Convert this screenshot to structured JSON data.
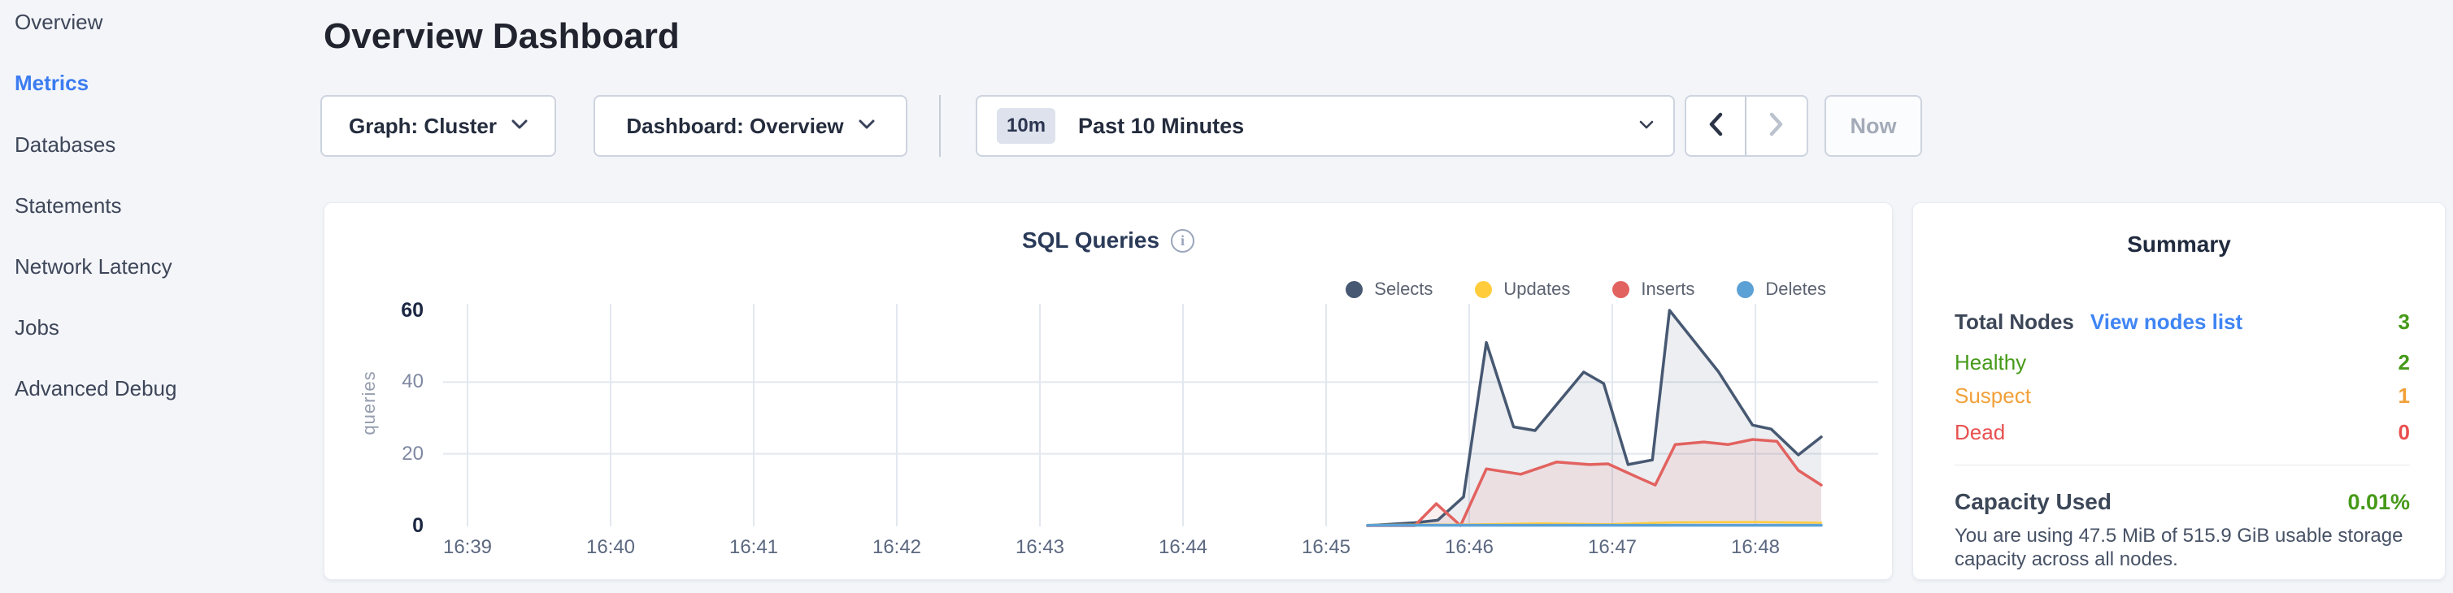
{
  "page": {
    "title": "Overview Dashboard"
  },
  "sidebar": {
    "items": [
      {
        "label": "Overview",
        "active": false
      },
      {
        "label": "Metrics",
        "active": true
      },
      {
        "label": "Databases",
        "active": false
      },
      {
        "label": "Statements",
        "active": false
      },
      {
        "label": "Network Latency",
        "active": false
      },
      {
        "label": "Jobs",
        "active": false
      },
      {
        "label": "Advanced Debug",
        "active": false
      }
    ]
  },
  "toolbar": {
    "graph_dropdown_label": "Graph: Cluster",
    "dashboard_dropdown_label": "Dashboard: Overview",
    "time_badge": "10m",
    "time_label": "Past 10 Minutes",
    "now_label": "Now",
    "prev_enabled": true,
    "next_enabled": false
  },
  "icons": {
    "dropdown_caret": "chevron-down-icon",
    "prev": "chevron-left-icon",
    "next": "chevron-right-icon",
    "info": "info-icon"
  },
  "colors": {
    "accent_blue": "#3b7cf0",
    "link_blue": "#3f85f4",
    "green": "#469a19",
    "orange": "#f2a039",
    "red": "#e8504f",
    "selects": "#475872",
    "updates": "#ffcd3c",
    "inserts": "#e2625f",
    "deletes": "#5ca1d6"
  },
  "chart_data": {
    "type": "area",
    "title": "SQL Queries",
    "ylabel": "queries",
    "x_ticks": [
      "16:39",
      "16:40",
      "16:41",
      "16:42",
      "16:43",
      "16:44",
      "16:45",
      "16:46",
      "16:47",
      "16:48"
    ],
    "y_ticks": [
      0,
      20,
      40,
      60
    ],
    "ylim": [
      0,
      60
    ],
    "x_range_minutes_after_1639": [
      0,
      9.6
    ],
    "grid": true,
    "legend_position": "top-right",
    "series": [
      {
        "name": "Selects",
        "color": "#475872",
        "fill": "rgba(71,88,114,0.10)",
        "points": [
          [
            6.29,
            0
          ],
          [
            6.62,
            0.8
          ],
          [
            6.78,
            1.5
          ],
          [
            6.96,
            8
          ],
          [
            7.12,
            51
          ],
          [
            7.31,
            27.5
          ],
          [
            7.46,
            26.5
          ],
          [
            7.8,
            42.8
          ],
          [
            7.94,
            39.6
          ],
          [
            8.11,
            17
          ],
          [
            8.28,
            18.3
          ],
          [
            8.4,
            60
          ],
          [
            8.74,
            43
          ],
          [
            8.98,
            28
          ],
          [
            9.11,
            26.9
          ],
          [
            9.3,
            19.7
          ],
          [
            9.46,
            24.7
          ]
        ]
      },
      {
        "name": "Updates",
        "color": "#ffcd3c",
        "fill": null,
        "points": [
          [
            6.29,
            0.2
          ],
          [
            6.94,
            0.3
          ],
          [
            7.5,
            0.6
          ],
          [
            7.98,
            0.4
          ],
          [
            8.44,
            0.9
          ],
          [
            8.98,
            1.0
          ],
          [
            9.46,
            0.8
          ]
        ]
      },
      {
        "name": "Inserts",
        "color": "#e2625f",
        "fill": "rgba(226,97,94,0.10)",
        "points": [
          [
            6.29,
            0
          ],
          [
            6.62,
            0
          ],
          [
            6.77,
            6.1
          ],
          [
            6.94,
            0
          ],
          [
            7.12,
            15.8
          ],
          [
            7.36,
            14.3
          ],
          [
            7.61,
            17.7
          ],
          [
            7.84,
            17
          ],
          [
            7.97,
            17.2
          ],
          [
            8.18,
            13.4
          ],
          [
            8.3,
            11.3
          ],
          [
            8.44,
            22.6
          ],
          [
            8.64,
            23.3
          ],
          [
            8.81,
            22.6
          ],
          [
            8.98,
            24
          ],
          [
            9.15,
            23.5
          ],
          [
            9.3,
            15.4
          ],
          [
            9.46,
            11.3
          ]
        ]
      },
      {
        "name": "Deletes",
        "color": "#5ca1d6",
        "fill": null,
        "points": [
          [
            6.29,
            0.1
          ],
          [
            9.46,
            0.1
          ]
        ]
      }
    ]
  },
  "summary": {
    "title": "Summary",
    "rows": [
      {
        "label": "Total Nodes",
        "link": "View nodes list",
        "value": "3",
        "value_color": "green"
      },
      {
        "label": "Healthy",
        "value": "2",
        "color": "green"
      },
      {
        "label": "Suspect",
        "value": "1",
        "color": "orange"
      },
      {
        "label": "Dead",
        "value": "0",
        "color": "red"
      }
    ],
    "capacity": {
      "label": "Capacity Used",
      "value": "0.01%",
      "description": "You are using 47.5 MiB of 515.9 GiB usable storage capacity across all nodes."
    }
  }
}
